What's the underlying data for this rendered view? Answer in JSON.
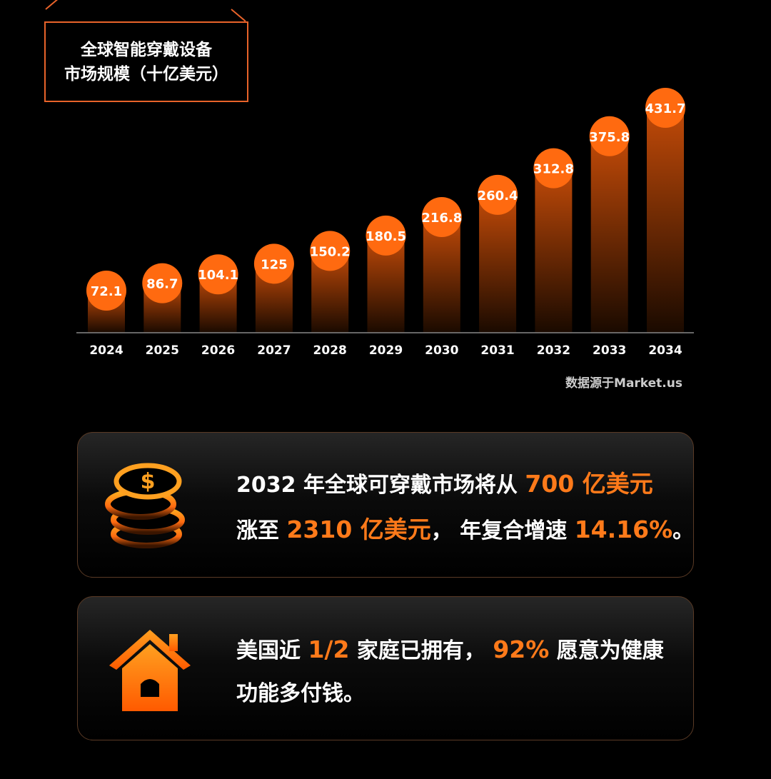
{
  "chart_data": {
    "type": "bar",
    "title": "全球智能穿戴设备市场规模（十亿美元）",
    "title_lines": [
      "全球智能穿戴设备",
      "市场规模（十亿美元）"
    ],
    "categories": [
      "2024",
      "2025",
      "2026",
      "2027",
      "2028",
      "2029",
      "2030",
      "2031",
      "2032",
      "2033",
      "2034"
    ],
    "values": [
      72.1,
      86.7,
      104.1,
      125,
      150.2,
      180.5,
      216.8,
      260.4,
      312.8,
      375.8,
      431.7
    ],
    "value_labels": [
      "72.1",
      "86.7",
      "104.1",
      "125",
      "150.2",
      "180.5",
      "216.8",
      "260.4",
      "312.8",
      "375.8",
      "431.7"
    ],
    "xlabel": "",
    "ylabel": "",
    "grid": false,
    "colors": {
      "accent": "#ff6a10",
      "bar_top": "#c24a08",
      "bar_bottom": "#1a0a00"
    }
  },
  "source": "数据源于Market.us",
  "cards": [
    {
      "icon": "coins-icon",
      "lines": [
        [
          {
            "t": "2032 年全球可穿戴市场将从 "
          },
          {
            "t": "700 亿美元",
            "hl": true
          }
        ],
        [
          {
            "t": "涨至 "
          },
          {
            "t": "2310 亿美元",
            "hl": true
          },
          {
            "t": "， 年复合增速 "
          },
          {
            "t": "14.16%",
            "hl": true
          },
          {
            "t": "。"
          }
        ]
      ]
    },
    {
      "icon": "house-icon",
      "lines": [
        [
          {
            "t": "美国近 "
          },
          {
            "t": "1/2",
            "hl": true
          },
          {
            "t": " 家庭已拥有， "
          },
          {
            "t": "92%",
            "hl": true
          },
          {
            "t": " 愿意为健康"
          }
        ],
        [
          {
            "t": "功能多付钱。"
          }
        ]
      ]
    }
  ]
}
